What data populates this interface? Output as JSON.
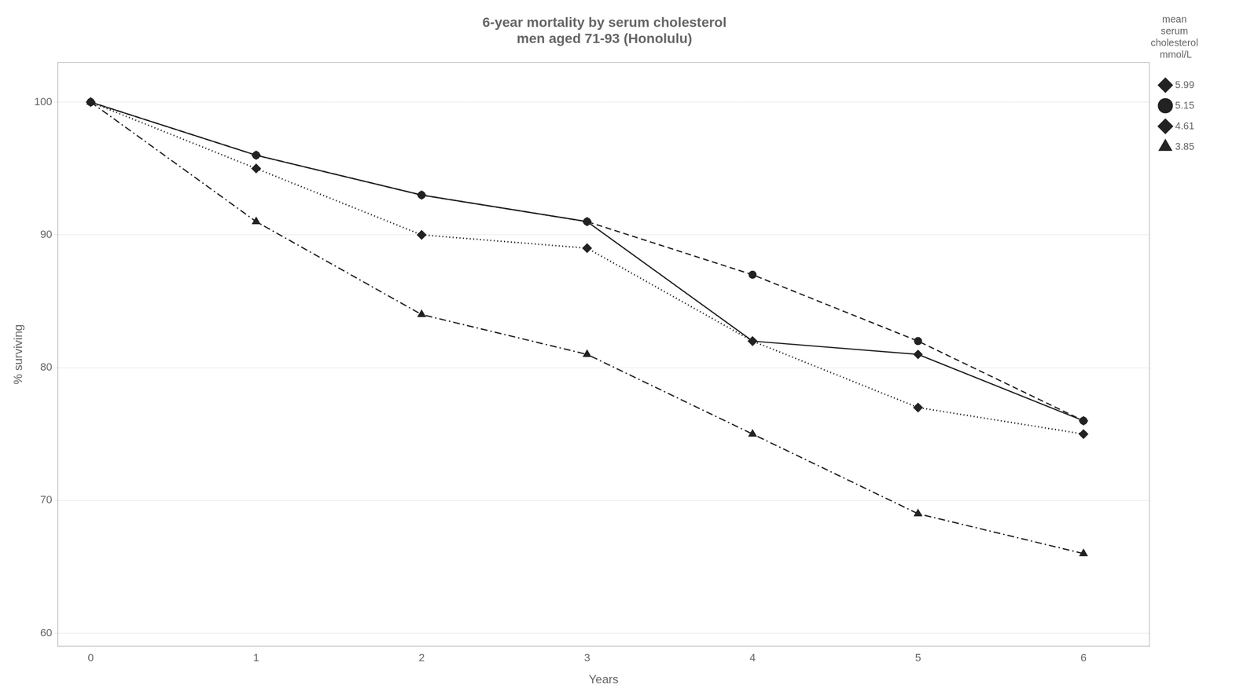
{
  "chart_data": {
    "type": "line",
    "title": "6-year mortality by serum cholesterol\nmen aged 71-93 (Honolulu)",
    "x_label": "Years",
    "y_label": "% surviving",
    "legend_title": "mean\nserum\ncholesterol\n mmol/L",
    "x": [
      0,
      1,
      2,
      3,
      4,
      5,
      6
    ],
    "series": [
      {
        "name": "5.99",
        "color": "#222222",
        "marker": "diamond",
        "line_style": "solid",
        "values": [
          100,
          96,
          93,
          91,
          82,
          81,
          76
        ]
      },
      {
        "name": "5.15",
        "color": "#222222",
        "marker": "circle",
        "line_style": "dashed",
        "values": [
          100,
          96,
          93,
          91,
          87,
          82,
          76
        ]
      },
      {
        "name": "4.61",
        "color": "#222222",
        "marker": "diamond",
        "line_style": "dotted",
        "values": [
          100,
          95,
          90,
          89,
          82,
          77,
          75
        ]
      },
      {
        "name": "3.85",
        "color": "#222222",
        "marker": "triangle",
        "line_style": "dashdot",
        "values": [
          100,
          91,
          84,
          81,
          75,
          69,
          66
        ]
      }
    ],
    "xlim": [
      -0.2,
      6.4
    ],
    "xticks": [
      0,
      1,
      2,
      3,
      4,
      5,
      6
    ],
    "ylim": [
      59,
      103
    ],
    "yticks": [
      60,
      70,
      80,
      90,
      100
    ],
    "grid": "y",
    "legend": "right"
  }
}
